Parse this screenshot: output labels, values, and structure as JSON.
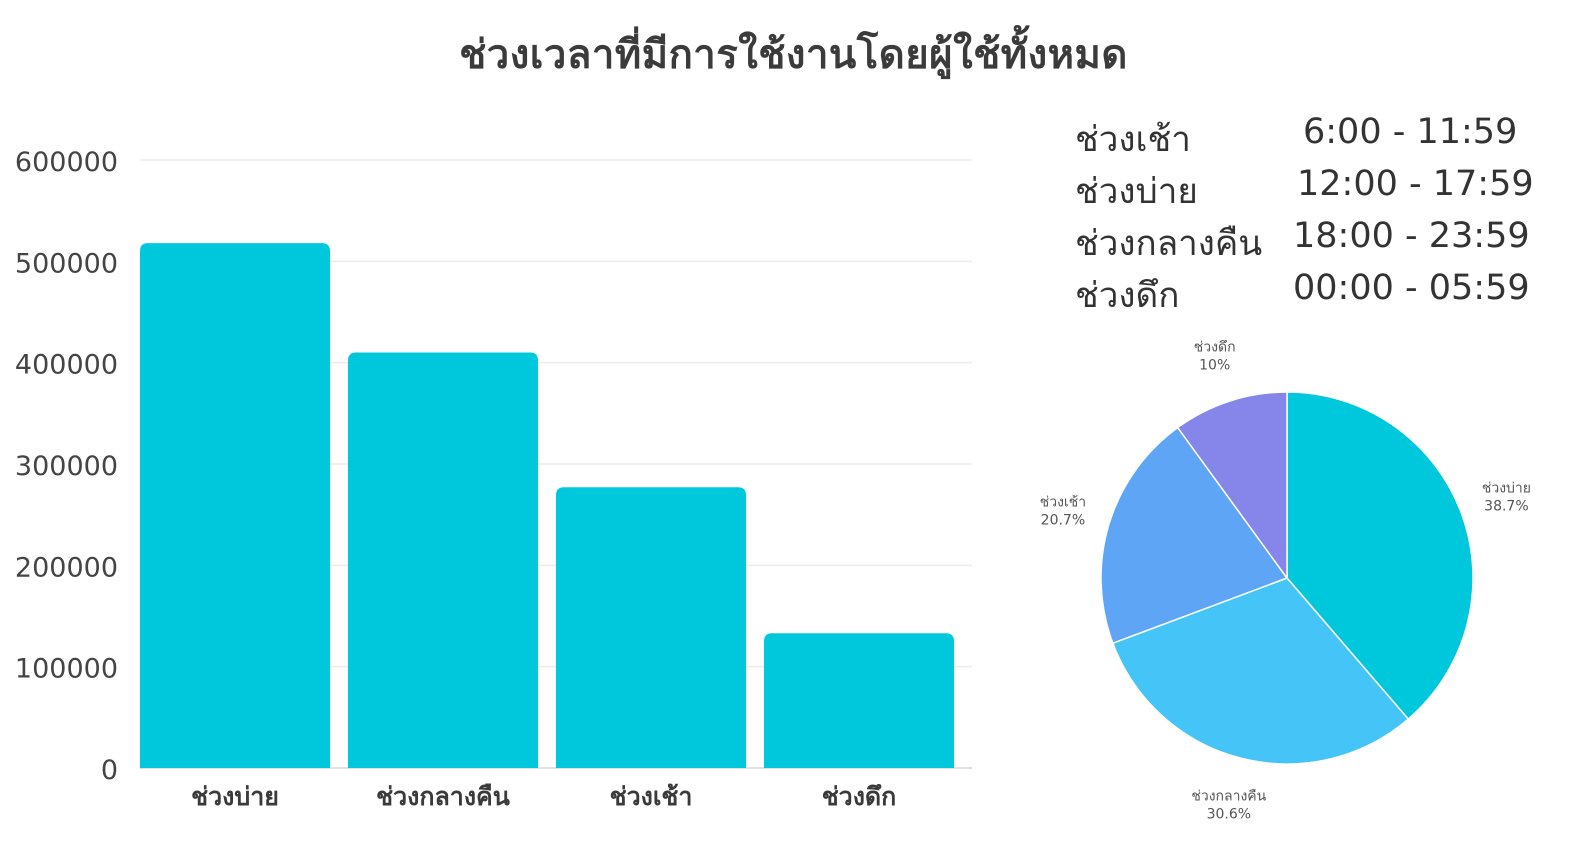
{
  "page_title": "ช่วงเวลาที่มีการใช้งานโดยผู้ใช้ทั้งหมด",
  "time_ranges": [
    {
      "name": "ช่วงเช้า",
      "range": "6:00 - 11:59"
    },
    {
      "name": "ช่วงบ่าย",
      "range": "12:00 - 17:59"
    },
    {
      "name": "ช่วงกลางคืน",
      "range": "18:00 - 23:59"
    },
    {
      "name": "ช่วงดึก",
      "range": "00:00 - 05:59"
    }
  ],
  "chart_data": [
    {
      "type": "bar",
      "title": "ช่วงเวลาที่มีการใช้งานโดยผู้ใช้ทั้งหมด",
      "categories": [
        "ช่วงบ่าย",
        "ช่วงกลางคืน",
        "ช่วงเช้า",
        "ช่วงดึก"
      ],
      "values": [
        518000,
        410000,
        277000,
        133000
      ],
      "xlabel": "",
      "ylabel": "",
      "ylim": [
        0,
        600000
      ],
      "yticks": [
        "0",
        "100000",
        "200000",
        "300000",
        "400000",
        "500000",
        "600000"
      ],
      "grid": true,
      "color": "#00c8dc"
    },
    {
      "type": "pie",
      "slices": [
        {
          "label": "ช่วงบ่าย",
          "value": 38.7,
          "text": "38.7%",
          "color": "#00c8dc"
        },
        {
          "label": "ช่วงกลางคืน",
          "value": 30.6,
          "text": "30.6%",
          "color": "#45c4f7"
        },
        {
          "label": "ช่วงเช้า",
          "value": 20.7,
          "text": "20.7%",
          "color": "#5ea6f5"
        },
        {
          "label": "ช่วงดึก",
          "value": 10,
          "text": "10%",
          "color": "#8585ea"
        }
      ]
    }
  ]
}
